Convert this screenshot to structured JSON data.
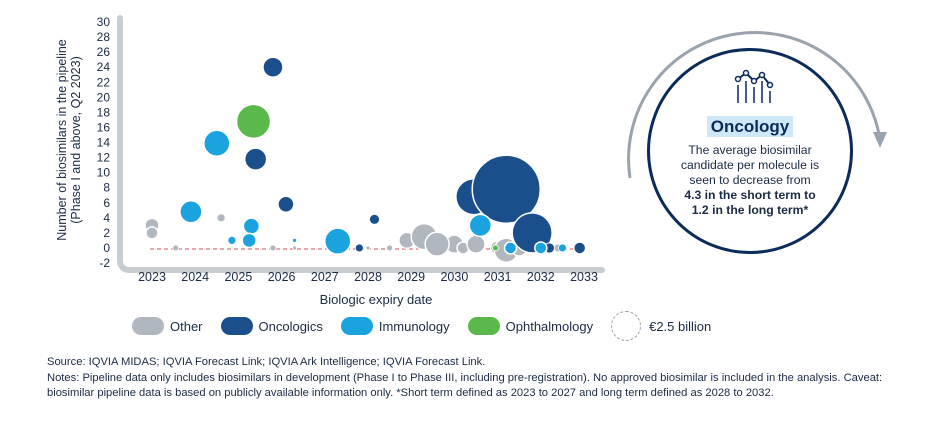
{
  "chart_data": {
    "type": "scatter",
    "subtype": "bubble",
    "xlabel": "Biologic expiry date",
    "ylabel_lines": [
      "Number of biosimilars in the pipeline",
      "(Phase I and above, Q2 2023)"
    ],
    "x_ticks": [
      "2023",
      "2024",
      "2025",
      "2026",
      "2027",
      "2028",
      "2029",
      "2030",
      "2031",
      "2032",
      "2033"
    ],
    "y_ticks": [
      30,
      28,
      26,
      24,
      22,
      20,
      18,
      16,
      14,
      12,
      10,
      8,
      6,
      4,
      2,
      0,
      -2
    ],
    "ylim": [
      -2,
      30
    ],
    "xlim": [
      2022.5,
      2033.5
    ],
    "colors": {
      "Other": "#b0b7bf",
      "Oncologics": "#1b4f8c",
      "Immunology": "#1aa3df",
      "Ophthalmology": "#5bb84a"
    },
    "legend": [
      {
        "name": "Other",
        "color": "#b0b7bf"
      },
      {
        "name": "Oncologics",
        "color": "#1b4f8c"
      },
      {
        "name": "Immunology",
        "color": "#1aa3df"
      },
      {
        "name": "Ophthalmology",
        "color": "#5bb84a"
      }
    ],
    "size_legend_label": "€2.5  billion",
    "series": [
      {
        "name": "Other",
        "points": [
          {
            "x": 2023.0,
            "y": 3,
            "r": 7
          },
          {
            "x": 2023.0,
            "y": 2,
            "r": 6
          },
          {
            "x": 2023.55,
            "y": 0,
            "r": 3
          },
          {
            "x": 2024.6,
            "y": 4,
            "r": 4
          },
          {
            "x": 2025.8,
            "y": 0,
            "r": 3
          },
          {
            "x": 2026.3,
            "y": 0,
            "r": 2
          },
          {
            "x": 2027.3,
            "y": 0.7,
            "r": 3
          },
          {
            "x": 2028.0,
            "y": 0,
            "r": 2
          },
          {
            "x": 2028.5,
            "y": 0,
            "r": 3
          },
          {
            "x": 2028.9,
            "y": 1,
            "r": 8
          },
          {
            "x": 2029.3,
            "y": 1.5,
            "r": 13
          },
          {
            "x": 2030.0,
            "y": 0.5,
            "r": 9
          },
          {
            "x": 2029.6,
            "y": 0.5,
            "r": 12
          },
          {
            "x": 2030.2,
            "y": 0,
            "r": 6
          },
          {
            "x": 2030.5,
            "y": 0.5,
            "r": 9
          },
          {
            "x": 2031.0,
            "y": 0,
            "r": 7
          },
          {
            "x": 2031.2,
            "y": -0.3,
            "r": 12
          },
          {
            "x": 2031.5,
            "y": 0,
            "r": 8
          },
          {
            "x": 2031.8,
            "y": 0,
            "r": 6
          },
          {
            "x": 2032.0,
            "y": 0.5,
            "r": 8
          },
          {
            "x": 2032.4,
            "y": 0,
            "r": 4
          }
        ]
      },
      {
        "name": "Oncologics",
        "points": [
          {
            "x": 2025.8,
            "y": 24,
            "r": 10
          },
          {
            "x": 2025.4,
            "y": 11.8,
            "r": 11
          },
          {
            "x": 2026.1,
            "y": 5.8,
            "r": 8
          },
          {
            "x": 2027.8,
            "y": 0,
            "r": 4
          },
          {
            "x": 2028.15,
            "y": 3.8,
            "r": 5
          },
          {
            "x": 2030.45,
            "y": 6.8,
            "r": 18
          },
          {
            "x": 2031.2,
            "y": 7.8,
            "r": 34
          },
          {
            "x": 2031.8,
            "y": 2,
            "r": 20
          },
          {
            "x": 2032.2,
            "y": 0,
            "r": 5
          },
          {
            "x": 2032.9,
            "y": 0,
            "r": 6
          }
        ]
      },
      {
        "name": "Immunology",
        "points": [
          {
            "x": 2023.9,
            "y": 4.8,
            "r": 11
          },
          {
            "x": 2024.5,
            "y": 13.9,
            "r": 13
          },
          {
            "x": 2025.3,
            "y": 2.9,
            "r": 8
          },
          {
            "x": 2025.25,
            "y": 1,
            "r": 7
          },
          {
            "x": 2024.85,
            "y": 1,
            "r": 4
          },
          {
            "x": 2026.3,
            "y": 1,
            "r": 2
          },
          {
            "x": 2027.3,
            "y": 0.9,
            "r": 13
          },
          {
            "x": 2030.6,
            "y": 3,
            "r": 11
          },
          {
            "x": 2031.3,
            "y": 0,
            "r": 6
          },
          {
            "x": 2032.0,
            "y": 0,
            "r": 6
          },
          {
            "x": 2032.5,
            "y": 0,
            "r": 4
          }
        ]
      },
      {
        "name": "Ophthalmology",
        "points": [
          {
            "x": 2025.35,
            "y": 16.8,
            "r": 17
          },
          {
            "x": 2030.95,
            "y": 0,
            "r": 3
          }
        ]
      }
    ]
  },
  "callout": {
    "title": "Oncology",
    "desc_lines": [
      "The average biosimilar",
      "candidate per molecule is",
      "seen to decrease from"
    ],
    "bold_lines": [
      "4.3 in the short term to",
      "1.2 in the long term*"
    ]
  },
  "footnote": {
    "source": "Source: IQVIA MIDAS; IQVIA Forecast Link; IQVIA Ark Intelligence; IQVIA Forecast Link.",
    "notes": "Notes: Pipeline data only includes biosimilars in development (Phase I to Phase III, including pre-registration). No approved biosimilar is included in the analysis. Caveat: biosimilar pipeline data is based on publicly available information only. *Short term defined as 2023 to 2027 and long term defined as 2028 to 2032."
  }
}
